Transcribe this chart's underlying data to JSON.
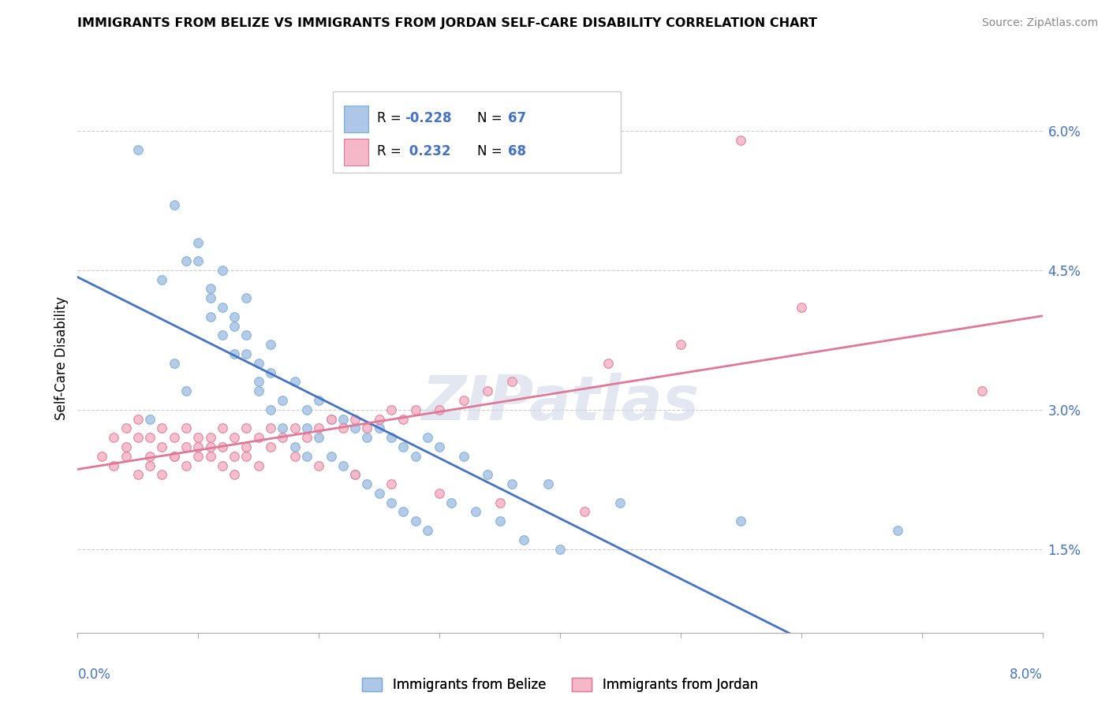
{
  "title": "IMMIGRANTS FROM BELIZE VS IMMIGRANTS FROM JORDAN SELF-CARE DISABILITY CORRELATION CHART",
  "source": "Source: ZipAtlas.com",
  "ylabel": "Self-Care Disability",
  "x_min": 0.0,
  "x_max": 8.0,
  "y_min": 0.6,
  "y_max": 6.5,
  "y_ticks": [
    1.5,
    3.0,
    4.5,
    6.0
  ],
  "y_tick_labels": [
    "1.5%",
    "3.0%",
    "4.5%",
    "6.0%"
  ],
  "belize_color": "#aec6e8",
  "belize_edge_color": "#7aafd4",
  "jordan_color": "#f4b8c8",
  "jordan_edge_color": "#e07898",
  "belize_line_color": "#4472c4",
  "jordan_line_color": "#e07898",
  "belize_R": -0.228,
  "belize_N": 67,
  "jordan_R": 0.232,
  "jordan_N": 68,
  "watermark": "ZIPatlas",
  "belize_scatter_x": [
    0.5,
    0.8,
    0.9,
    1.0,
    1.1,
    1.1,
    1.2,
    1.2,
    1.3,
    1.3,
    1.4,
    1.4,
    1.5,
    1.5,
    1.6,
    1.6,
    1.7,
    1.8,
    1.9,
    1.9,
    2.0,
    2.1,
    2.2,
    2.3,
    2.4,
    2.5,
    2.6,
    2.7,
    2.8,
    2.9,
    3.0,
    3.2,
    3.4,
    3.6,
    3.9,
    4.5,
    5.5,
    6.8,
    0.6,
    0.7,
    0.8,
    0.9,
    1.0,
    1.1,
    1.2,
    1.3,
    1.4,
    1.5,
    1.6,
    1.7,
    1.8,
    1.9,
    2.0,
    2.1,
    2.2,
    2.3,
    2.4,
    2.5,
    2.6,
    2.7,
    2.8,
    2.9,
    3.1,
    3.3,
    3.5,
    3.7,
    4.0
  ],
  "belize_scatter_y": [
    5.8,
    5.2,
    4.6,
    4.8,
    4.3,
    4.0,
    4.5,
    4.1,
    3.9,
    3.6,
    4.2,
    3.8,
    3.5,
    3.2,
    3.7,
    3.4,
    3.1,
    3.3,
    3.0,
    2.8,
    3.1,
    2.9,
    2.9,
    2.8,
    2.7,
    2.8,
    2.7,
    2.6,
    2.5,
    2.7,
    2.6,
    2.5,
    2.3,
    2.2,
    2.2,
    2.0,
    1.8,
    1.7,
    2.9,
    4.4,
    3.5,
    3.2,
    4.6,
    4.2,
    3.8,
    4.0,
    3.6,
    3.3,
    3.0,
    2.8,
    2.6,
    2.5,
    2.7,
    2.5,
    2.4,
    2.3,
    2.2,
    2.1,
    2.0,
    1.9,
    1.8,
    1.7,
    2.0,
    1.9,
    1.8,
    1.6,
    1.5
  ],
  "jordan_scatter_x": [
    0.2,
    0.3,
    0.4,
    0.4,
    0.5,
    0.5,
    0.6,
    0.6,
    0.7,
    0.7,
    0.8,
    0.8,
    0.9,
    0.9,
    1.0,
    1.0,
    1.1,
    1.1,
    1.2,
    1.2,
    1.3,
    1.3,
    1.4,
    1.4,
    1.5,
    1.6,
    1.7,
    1.8,
    1.9,
    2.0,
    2.1,
    2.2,
    2.3,
    2.4,
    2.5,
    2.6,
    2.7,
    2.8,
    3.0,
    3.2,
    3.4,
    3.6,
    4.4,
    5.0,
    6.0,
    7.5,
    0.3,
    0.4,
    0.5,
    0.6,
    0.7,
    0.8,
    0.9,
    1.0,
    1.1,
    1.2,
    1.3,
    1.4,
    1.5,
    1.6,
    1.8,
    2.0,
    2.3,
    2.6,
    3.0,
    3.5,
    4.2,
    5.5
  ],
  "jordan_scatter_y": [
    2.5,
    2.7,
    2.6,
    2.8,
    2.7,
    2.9,
    2.5,
    2.7,
    2.6,
    2.8,
    2.5,
    2.7,
    2.6,
    2.8,
    2.7,
    2.5,
    2.7,
    2.6,
    2.8,
    2.6,
    2.7,
    2.5,
    2.8,
    2.6,
    2.7,
    2.8,
    2.7,
    2.8,
    2.7,
    2.8,
    2.9,
    2.8,
    2.9,
    2.8,
    2.9,
    3.0,
    2.9,
    3.0,
    3.0,
    3.1,
    3.2,
    3.3,
    3.5,
    3.7,
    4.1,
    3.2,
    2.4,
    2.5,
    2.3,
    2.4,
    2.3,
    2.5,
    2.4,
    2.6,
    2.5,
    2.4,
    2.3,
    2.5,
    2.4,
    2.6,
    2.5,
    2.4,
    2.3,
    2.2,
    2.1,
    2.0,
    1.9,
    5.9
  ]
}
